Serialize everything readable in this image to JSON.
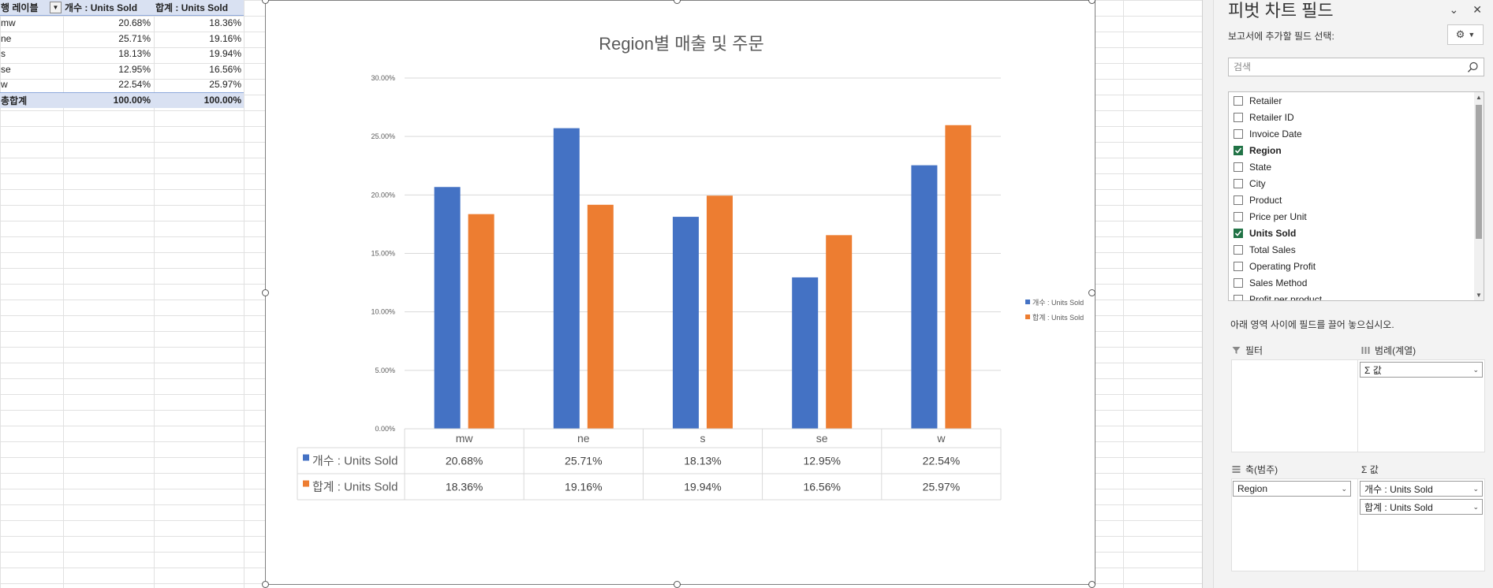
{
  "pivot_table": {
    "headers": [
      "행 레이블",
      "개수 : Units Sold",
      "합계 : Units Sold"
    ],
    "rows": [
      [
        "mw",
        "20.68%",
        "18.36%"
      ],
      [
        "ne",
        "25.71%",
        "19.16%"
      ],
      [
        "s",
        "18.13%",
        "19.94%"
      ],
      [
        "se",
        "12.95%",
        "16.56%"
      ],
      [
        "w",
        "22.54%",
        "25.97%"
      ]
    ],
    "total": [
      "총합계",
      "100.00%",
      "100.00%"
    ]
  },
  "chart_data": {
    "type": "bar",
    "title": "Region별 매출 및 주문",
    "categories": [
      "mw",
      "ne",
      "s",
      "se",
      "w"
    ],
    "series": [
      {
        "name": "개수 : Units Sold",
        "color": "#4472c4",
        "values": [
          20.68,
          25.71,
          18.13,
          12.95,
          22.54
        ],
        "labels": [
          "20.68%",
          "25.71%",
          "18.13%",
          "12.95%",
          "22.54%"
        ]
      },
      {
        "name": "합계 : Units Sold",
        "color": "#ed7d31",
        "values": [
          18.36,
          19.16,
          19.94,
          16.56,
          25.97
        ],
        "labels": [
          "18.36%",
          "19.16%",
          "19.94%",
          "16.56%",
          "25.97%"
        ]
      }
    ],
    "ylim": [
      0,
      30
    ],
    "yticks": [
      "0.00%",
      "5.00%",
      "10.00%",
      "15.00%",
      "20.00%",
      "25.00%",
      "30.00%"
    ],
    "legend_position": "right",
    "data_table": true,
    "grid": true
  },
  "pane": {
    "title": "피벗 차트 필드",
    "subtitle": "보고서에 추가할 필드 선택:",
    "search_placeholder": "검색",
    "fields": [
      {
        "label": "Retailer",
        "checked": false
      },
      {
        "label": "Retailer ID",
        "checked": false
      },
      {
        "label": "Invoice Date",
        "checked": false
      },
      {
        "label": "Region",
        "checked": true
      },
      {
        "label": "State",
        "checked": false
      },
      {
        "label": "City",
        "checked": false
      },
      {
        "label": "Product",
        "checked": false
      },
      {
        "label": "Price per Unit",
        "checked": false
      },
      {
        "label": "Units Sold",
        "checked": true
      },
      {
        "label": "Total Sales",
        "checked": false
      },
      {
        "label": "Operating Profit",
        "checked": false
      },
      {
        "label": "Sales Method",
        "checked": false
      },
      {
        "label": "Profit per product",
        "checked": false
      }
    ],
    "drag_hint": "아래 영역 사이에 필드를 끌어 놓으십시오.",
    "areas": {
      "filter_label": "필터",
      "legend_label": "범례(계열)",
      "legend_chip": "Σ 값",
      "axis_label": "축(범주)",
      "axis_chip": "Region",
      "values_label": "Σ 값",
      "values_chips": [
        "개수 : Units Sold",
        "합계 : Units Sold"
      ]
    }
  }
}
